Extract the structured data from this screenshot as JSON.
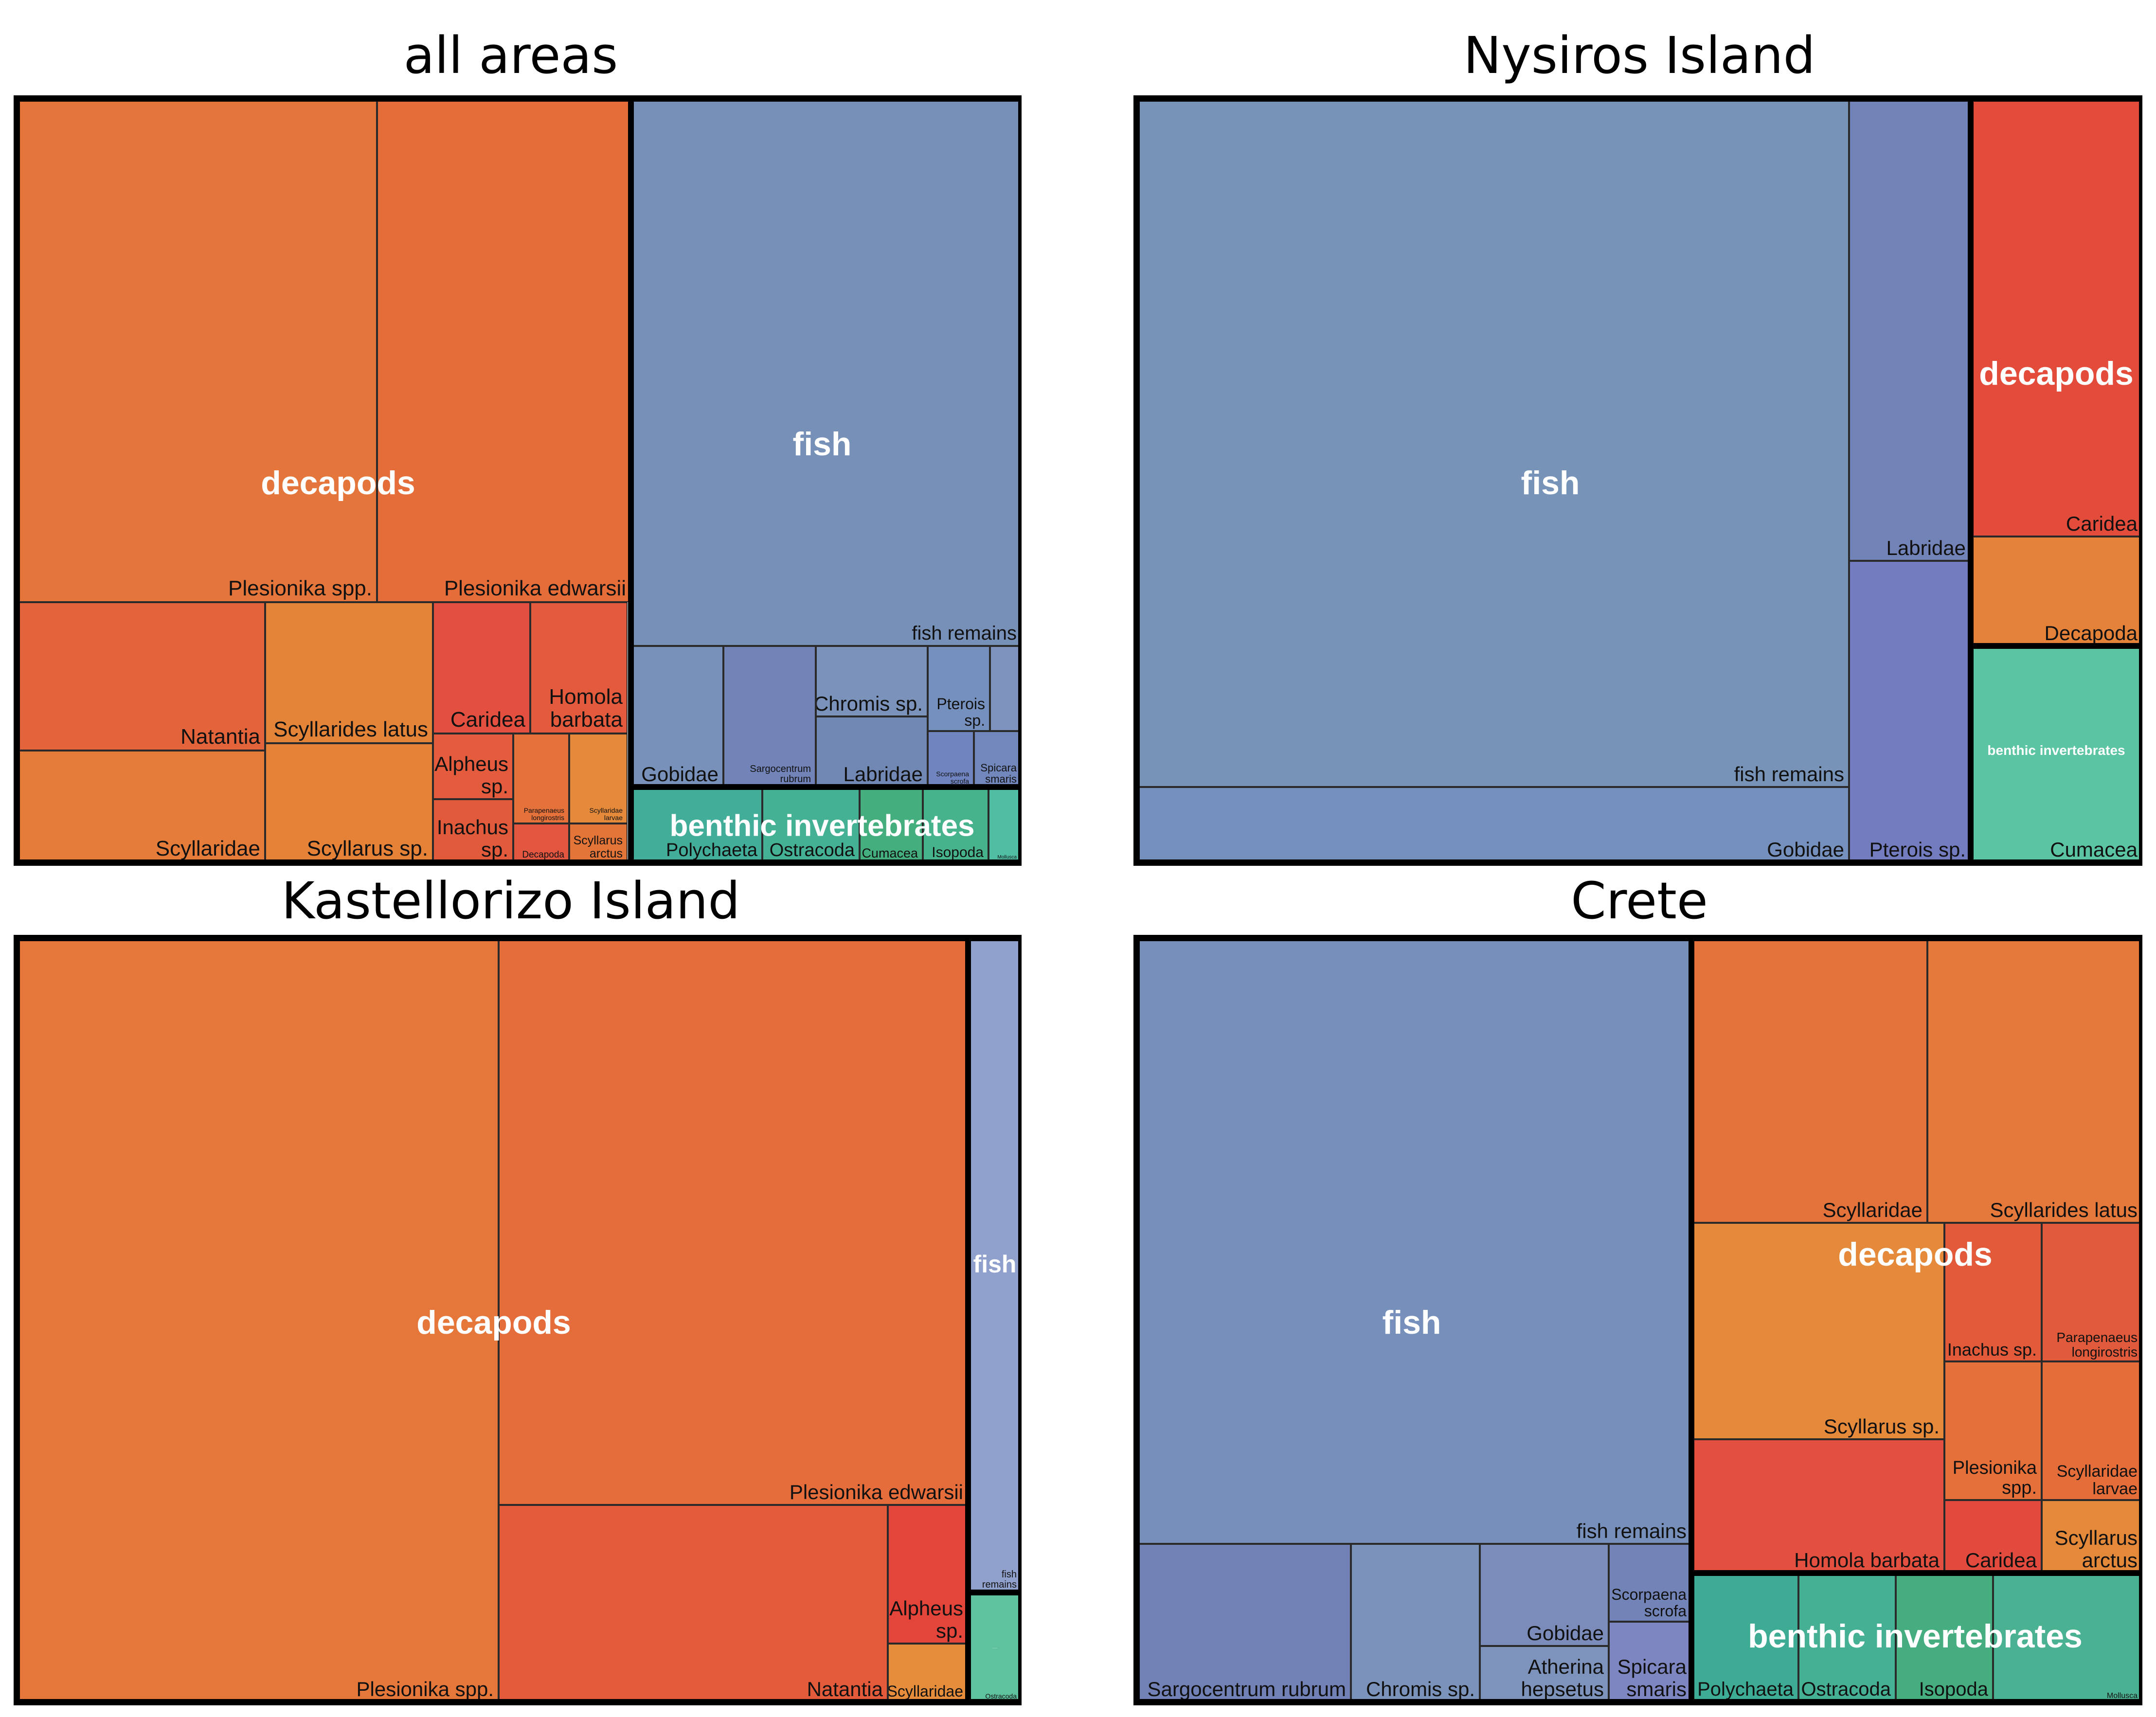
{
  "colors": {
    "fish": "#7590b8",
    "decapods": "#e4703a",
    "benthic": "#47b08f",
    "border": "#000000"
  },
  "panels": [
    {
      "title": "all areas",
      "groups": [
        {
          "name": "decapods",
          "value": 64
        },
        {
          "name": "fish",
          "value": 32
        },
        {
          "name": "benthic invertebrates",
          "value": 4
        }
      ]
    },
    {
      "title": "Nysiros Island",
      "groups": [
        {
          "name": "fish",
          "value": 84
        },
        {
          "name": "decapods",
          "value": 12
        },
        {
          "name": "benthic invertebrates",
          "value": 4
        }
      ]
    },
    {
      "title": "Kastellorizo Island",
      "groups": [
        {
          "name": "decapods",
          "value": 95
        },
        {
          "name": "fish",
          "value": 4
        },
        {
          "name": "benthic invertebrates",
          "value": 1
        }
      ]
    },
    {
      "title": "Crete",
      "groups": [
        {
          "name": "fish",
          "value": 55
        },
        {
          "name": "decapods",
          "value": 36
        },
        {
          "name": "benthic invertebrates",
          "value": 9
        }
      ]
    }
  ],
  "chart_data": [
    {
      "type": "treemap",
      "title": "all areas",
      "groups": [
        "decapods",
        "fish",
        "benthic invertebrates"
      ],
      "leaves": [
        {
          "group": "decapods",
          "label": "Plesionika spp."
        },
        {
          "group": "decapods",
          "label": "Plesionika edwarsii"
        },
        {
          "group": "decapods",
          "label": "Natantia"
        },
        {
          "group": "decapods",
          "label": "Scyllarides latus"
        },
        {
          "group": "decapods",
          "label": "Caridea"
        },
        {
          "group": "decapods",
          "label": "Homola barbata"
        },
        {
          "group": "decapods",
          "label": "Scyllaridae"
        },
        {
          "group": "decapods",
          "label": "Scyllarus sp."
        },
        {
          "group": "decapods",
          "label": "Alpheus sp."
        },
        {
          "group": "decapods",
          "label": "Inachus sp."
        },
        {
          "group": "decapods",
          "label": "Parapenaeus longirostris"
        },
        {
          "group": "decapods",
          "label": "Scyllaridae larvae"
        },
        {
          "group": "decapods",
          "label": "Decapoda"
        },
        {
          "group": "decapods",
          "label": "Scyllarus arctus"
        },
        {
          "group": "fish",
          "label": "fish remains"
        },
        {
          "group": "fish",
          "label": "Gobidae"
        },
        {
          "group": "fish",
          "label": "Sargocentrum rubrum"
        },
        {
          "group": "fish",
          "label": "Chromis sp."
        },
        {
          "group": "fish",
          "label": "Labridae"
        },
        {
          "group": "fish",
          "label": "Pterois sp."
        },
        {
          "group": "fish",
          "label": "Scorpaena scrofa"
        },
        {
          "group": "fish",
          "label": "Spicara smaris"
        },
        {
          "group": "benthic invertebrates",
          "label": "Polychaeta"
        },
        {
          "group": "benthic invertebrates",
          "label": "Ostracoda"
        },
        {
          "group": "benthic invertebrates",
          "label": "Cumacea"
        },
        {
          "group": "benthic invertebrates",
          "label": "Isopoda"
        },
        {
          "group": "benthic invertebrates",
          "label": "Mollusca"
        }
      ]
    },
    {
      "type": "treemap",
      "title": "Nysiros Island",
      "groups": [
        "fish",
        "decapods",
        "benthic invertebrates"
      ],
      "leaves": [
        {
          "group": "fish",
          "label": "fish remains"
        },
        {
          "group": "fish",
          "label": "Gobidae"
        },
        {
          "group": "fish",
          "label": "Labridae"
        },
        {
          "group": "fish",
          "label": "Pterois sp."
        },
        {
          "group": "decapods",
          "label": "Caridea"
        },
        {
          "group": "decapods",
          "label": "Decapoda"
        },
        {
          "group": "benthic invertebrates",
          "label": "Cumacea"
        }
      ]
    },
    {
      "type": "treemap",
      "title": "Kastellorizo Island",
      "groups": [
        "decapods",
        "fish",
        "benthic invertebrates"
      ],
      "leaves": [
        {
          "group": "decapods",
          "label": "Plesionika spp."
        },
        {
          "group": "decapods",
          "label": "Plesionika edwarsii"
        },
        {
          "group": "decapods",
          "label": "Natantia"
        },
        {
          "group": "decapods",
          "label": "Alpheus sp."
        },
        {
          "group": "decapods",
          "label": "Scyllaridae"
        },
        {
          "group": "fish",
          "label": "fish remains"
        },
        {
          "group": "benthic invertebrates",
          "label": "Ostracoda"
        }
      ]
    },
    {
      "type": "treemap",
      "title": "Crete",
      "groups": [
        "fish",
        "decapods",
        "benthic invertebrates"
      ],
      "leaves": [
        {
          "group": "fish",
          "label": "fish remains"
        },
        {
          "group": "fish",
          "label": "Sargocentrum rubrum"
        },
        {
          "group": "fish",
          "label": "Chromis sp."
        },
        {
          "group": "fish",
          "label": "Gobidae"
        },
        {
          "group": "fish",
          "label": "Atherina hepsetus"
        },
        {
          "group": "fish",
          "label": "Scorpaena scrofa"
        },
        {
          "group": "fish",
          "label": "Spicara smaris"
        },
        {
          "group": "decapods",
          "label": "Scyllaridae"
        },
        {
          "group": "decapods",
          "label": "Scyllarides latus"
        },
        {
          "group": "decapods",
          "label": "Scyllarus sp."
        },
        {
          "group": "decapods",
          "label": "Inachus sp."
        },
        {
          "group": "decapods",
          "label": "Parapenaeus longirostris"
        },
        {
          "group": "decapods",
          "label": "Plesionika spp."
        },
        {
          "group": "decapods",
          "label": "Scyllaridae larvae"
        },
        {
          "group": "decapods",
          "label": "Homola barbata"
        },
        {
          "group": "decapods",
          "label": "Caridea"
        },
        {
          "group": "decapods",
          "label": "Scyllarus arctus"
        },
        {
          "group": "benthic invertebrates",
          "label": "Polychaeta"
        },
        {
          "group": "benthic invertebrates",
          "label": "Ostracoda"
        },
        {
          "group": "benthic invertebrates",
          "label": "Isopoda"
        },
        {
          "group": "benthic invertebrates",
          "label": "Mollusca"
        }
      ]
    }
  ]
}
